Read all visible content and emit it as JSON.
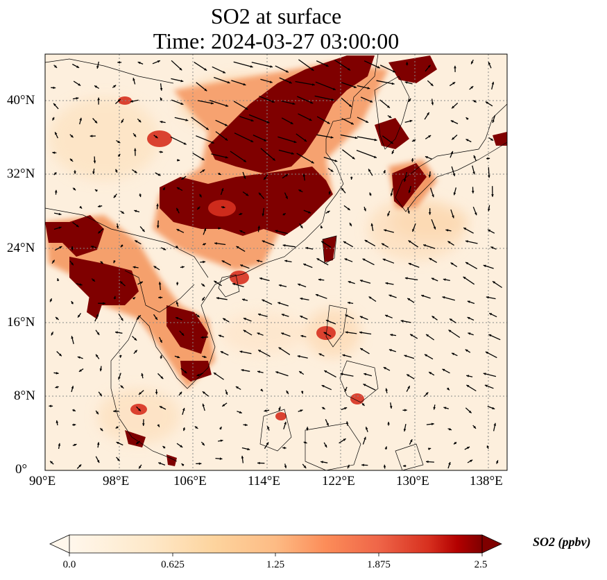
{
  "title": {
    "line1": "SO2 at surface",
    "line2": "Time: 2024-03-27 03:00:00"
  },
  "map": {
    "variable": "SO2",
    "units": "ppbv",
    "lon_range": [
      90,
      140
    ],
    "lat_range": [
      0,
      45
    ],
    "lon_ticks": [
      "90°E",
      "98°E",
      "106°E",
      "114°E",
      "122°E",
      "130°E",
      "138°E"
    ],
    "lat_ticks": [
      "0°",
      "8°N",
      "16°N",
      "24°N",
      "32°N",
      "40°N"
    ],
    "gridlines": true,
    "gridline_style": "dotted",
    "colormap": "OrRd",
    "vectors": "surface wind",
    "colors": {
      "low": "#fff7ec",
      "mid": "#fc8d59",
      "high": "#7f0000",
      "coast": "#000000"
    }
  },
  "colorbar": {
    "label": "SO2 (ppbv)",
    "ticks": [
      "0.0",
      "0.625",
      "1.25",
      "1.875",
      "2.5"
    ],
    "min": 0.0,
    "max": 2.5,
    "extend": "both"
  }
}
